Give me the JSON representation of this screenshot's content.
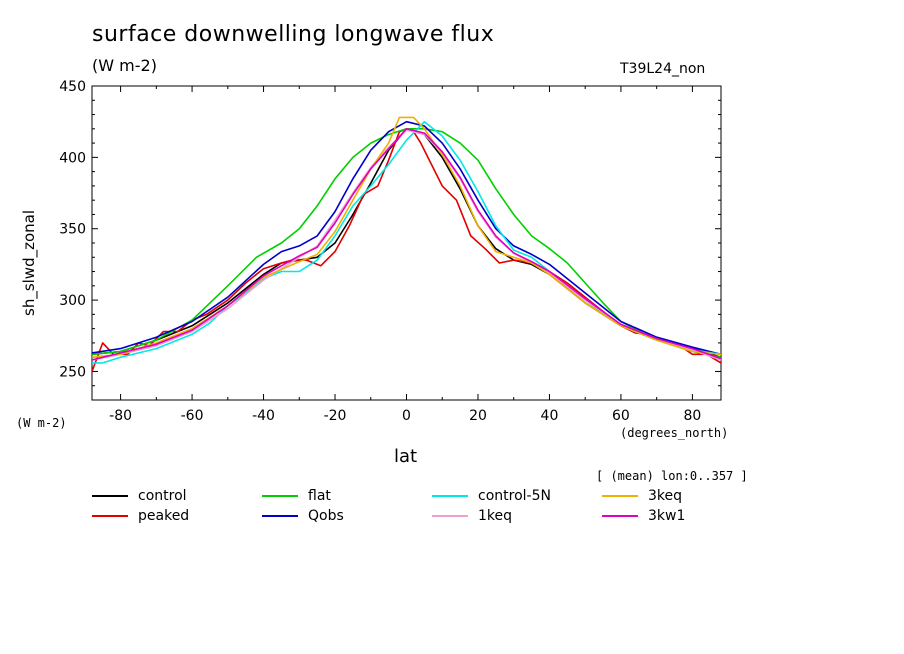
{
  "chart_data": {
    "type": "line",
    "title": "surface downwelling longwave flux",
    "units": "(W m-2)",
    "run_id": "T39L24_non",
    "ylabel": "sh_slwd_zonal",
    "y_units": "(W m-2)",
    "xlabel": "lat",
    "x_units": "(degrees_north)",
    "note": "[ (mean) lon:0..357 ]",
    "xlim": [
      -88,
      88
    ],
    "ylim": [
      230,
      450
    ],
    "xticks": [
      -80,
      -60,
      -40,
      -20,
      0,
      20,
      40,
      60,
      80
    ],
    "yticks": [
      250,
      300,
      350,
      400,
      450
    ],
    "xtick_labels": [
      "-80",
      "-60",
      "-40",
      "-20",
      "0",
      "20",
      "40",
      "60",
      "80"
    ],
    "ytick_labels": [
      "250",
      "300",
      "350",
      "400",
      "450"
    ],
    "series": [
      {
        "name": "control",
        "color": "#000000",
        "x": [
          -88,
          -80,
          -70,
          -60,
          -50,
          -40,
          -35,
          -30,
          -25,
          -20,
          -15,
          -10,
          -5,
          0,
          5,
          10,
          15,
          20,
          25,
          30,
          35,
          40,
          50,
          60,
          70,
          80,
          88
        ],
        "y": [
          262,
          264,
          272,
          282,
          298,
          318,
          326,
          328,
          330,
          340,
          360,
          382,
          405,
          420,
          416,
          400,
          378,
          352,
          336,
          328,
          325,
          318,
          298,
          282,
          272,
          266,
          260
        ]
      },
      {
        "name": "peaked",
        "color": "#e00000",
        "x": [
          -88,
          -85,
          -82,
          -78,
          -75,
          -72,
          -68,
          -64,
          -60,
          -56,
          -50,
          -45,
          -40,
          -35,
          -32,
          -28,
          -24,
          -20,
          -16,
          -12,
          -8,
          -5,
          -2,
          0,
          2,
          4,
          7,
          10,
          14,
          18,
          22,
          26,
          30,
          35,
          40,
          45,
          50,
          55,
          60,
          64,
          68,
          72,
          76,
          80,
          84,
          88
        ],
        "y": [
          250,
          270,
          262,
          262,
          270,
          268,
          278,
          278,
          286,
          290,
          300,
          312,
          322,
          326,
          328,
          328,
          324,
          334,
          352,
          374,
          380,
          398,
          418,
          420,
          418,
          410,
          395,
          380,
          370,
          345,
          336,
          326,
          328,
          326,
          320,
          312,
          302,
          292,
          282,
          277,
          276,
          271,
          269,
          262,
          262,
          256
        ]
      },
      {
        "name": "flat",
        "color": "#00d000",
        "x": [
          -88,
          -80,
          -70,
          -60,
          -50,
          -42,
          -35,
          -30,
          -25,
          -20,
          -15,
          -10,
          -5,
          0,
          5,
          10,
          15,
          20,
          25,
          30,
          35,
          40,
          45,
          50,
          55,
          60,
          70,
          80,
          88
        ],
        "y": [
          262,
          264,
          272,
          286,
          310,
          330,
          340,
          350,
          366,
          385,
          400,
          410,
          416,
          420,
          420,
          418,
          410,
          398,
          378,
          360,
          345,
          336,
          326,
          312,
          298,
          285,
          272,
          264,
          260
        ]
      },
      {
        "name": "Qobs",
        "color": "#0000c8",
        "x": [
          -88,
          -80,
          -70,
          -60,
          -50,
          -40,
          -35,
          -30,
          -25,
          -20,
          -15,
          -10,
          -5,
          0,
          5,
          10,
          15,
          20,
          25,
          30,
          35,
          40,
          50,
          60,
          70,
          80,
          88
        ],
        "y": [
          263,
          266,
          274,
          285,
          302,
          325,
          334,
          338,
          345,
          362,
          385,
          405,
          418,
          425,
          422,
          410,
          392,
          370,
          350,
          338,
          332,
          325,
          305,
          285,
          274,
          267,
          262
        ]
      },
      {
        "name": "control-5N",
        "color": "#00e8e8",
        "x": [
          -88,
          -85,
          -80,
          -70,
          -60,
          -55,
          -50,
          -45,
          -40,
          -35,
          -30,
          -25,
          -20,
          -15,
          -10,
          -5,
          0,
          5,
          10,
          15,
          20,
          25,
          30,
          35,
          40,
          50,
          60,
          70,
          80,
          88
        ],
        "y": [
          256,
          256,
          260,
          266,
          276,
          284,
          296,
          305,
          315,
          320,
          320,
          328,
          345,
          366,
          380,
          395,
          412,
          425,
          415,
          398,
          376,
          352,
          335,
          330,
          320,
          300,
          282,
          272,
          265,
          262
        ]
      },
      {
        "name": "1keq",
        "color": "#f0a0d0",
        "x": [
          -88,
          -80,
          -70,
          -60,
          -50,
          -40,
          -30,
          -25,
          -20,
          -15,
          -10,
          -5,
          0,
          5,
          10,
          15,
          20,
          25,
          30,
          35,
          40,
          50,
          60,
          70,
          80,
          88
        ],
        "y": [
          258,
          262,
          268,
          278,
          294,
          314,
          330,
          338,
          356,
          375,
          393,
          407,
          419,
          416,
          403,
          385,
          362,
          344,
          333,
          326,
          319,
          300,
          283,
          273,
          265,
          258
        ]
      },
      {
        "name": "3keq",
        "color": "#f0b000",
        "x": [
          -88,
          -80,
          -70,
          -60,
          -50,
          -40,
          -30,
          -25,
          -20,
          -15,
          -10,
          -5,
          -2,
          0,
          2,
          5,
          10,
          15,
          20,
          25,
          30,
          35,
          40,
          50,
          60,
          70,
          80,
          88
        ],
        "y": [
          260,
          262,
          270,
          280,
          296,
          316,
          327,
          332,
          348,
          370,
          392,
          410,
          428,
          428,
          428,
          420,
          402,
          380,
          352,
          334,
          330,
          326,
          318,
          298,
          282,
          272,
          264,
          262
        ]
      },
      {
        "name": "3kw1",
        "color": "#e000c0",
        "x": [
          -88,
          -80,
          -70,
          -60,
          -50,
          -40,
          -30,
          -25,
          -20,
          -15,
          -10,
          -5,
          0,
          5,
          10,
          15,
          20,
          25,
          30,
          35,
          40,
          50,
          60,
          70,
          80,
          88
        ],
        "y": [
          258,
          263,
          269,
          279,
          296,
          317,
          331,
          337,
          354,
          374,
          392,
          406,
          420,
          417,
          404,
          386,
          363,
          345,
          333,
          327,
          320,
          301,
          283,
          273,
          266,
          259
        ]
      }
    ]
  }
}
